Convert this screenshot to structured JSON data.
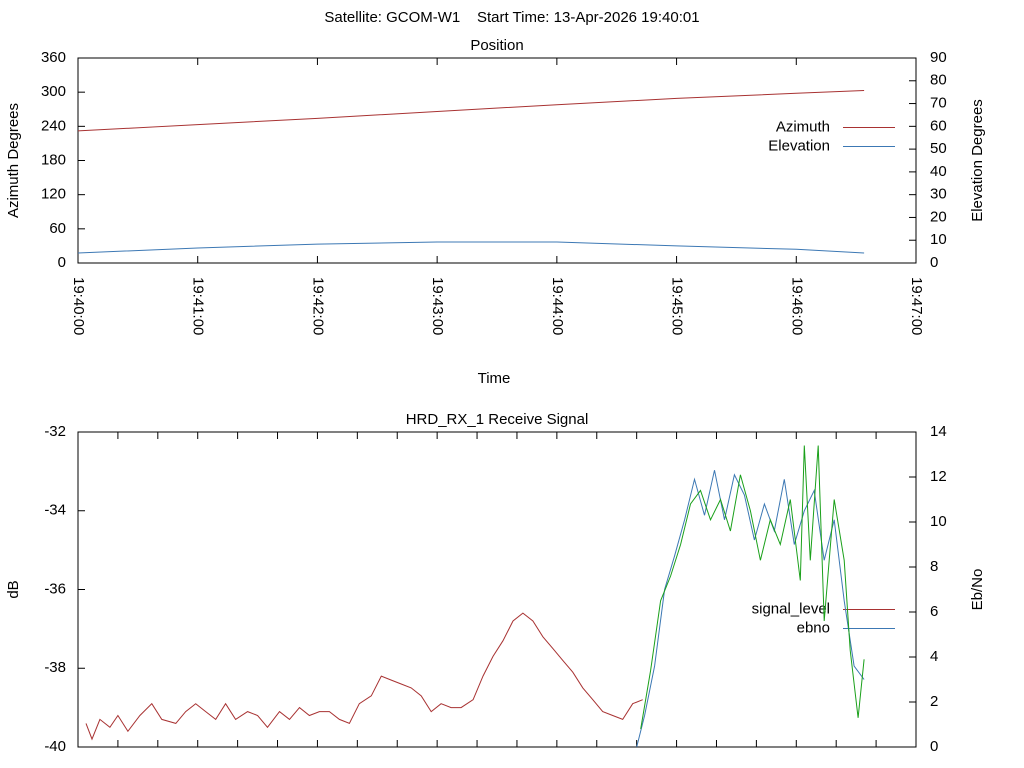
{
  "title": "Satellite: GCOM-W1    Start Time: 13-Apr-2026 19:40:01",
  "chart_data": [
    {
      "type": "line",
      "title": "Position",
      "xlabel": "Time",
      "ylabel": "Azimuth Degrees",
      "y2label": "Elevation Degrees",
      "xlim": [
        "19:40:00",
        "19:47:00"
      ],
      "xticks": [
        "19:40:00",
        "19:41:00",
        "19:42:00",
        "19:43:00",
        "19:44:00",
        "19:45:00",
        "19:46:00",
        "19:47:00"
      ],
      "ylim": [
        0,
        360
      ],
      "yticks": [
        0,
        60,
        120,
        180,
        240,
        300,
        360
      ],
      "y2lim": [
        0,
        90
      ],
      "y2ticks": [
        0,
        10,
        20,
        30,
        40,
        50,
        60,
        70,
        80,
        90
      ],
      "legend": "right",
      "series": [
        {
          "name": "Azimuth",
          "color": "#a83232",
          "x": [
            "19:40:00",
            "19:41:00",
            "19:42:00",
            "19:43:00",
            "19:44:00",
            "19:45:00",
            "19:46:00",
            "19:46:34"
          ],
          "values": [
            232,
            243,
            254,
            266,
            278,
            289,
            298,
            303
          ]
        },
        {
          "name": "Elevation",
          "color": "#3c78b4",
          "axis": "y2",
          "x": [
            "19:40:00",
            "19:41:00",
            "19:42:00",
            "19:43:00",
            "19:44:00",
            "19:45:00",
            "19:46:00",
            "19:46:34"
          ],
          "values": [
            4.4,
            6.6,
            8.3,
            9.2,
            9.2,
            7.5,
            6.0,
            4.4
          ]
        }
      ]
    },
    {
      "type": "line",
      "title": "HRD_RX_1 Receive Signal",
      "ylabel": "dB",
      "y2label": "Eb/No",
      "xlim": [
        "19:40:00",
        "19:47:00"
      ],
      "xticks": [
        "19:40:00",
        "19:40:20",
        "19:40:40",
        "19:41:00",
        "19:41:20",
        "19:41:40",
        "19:42:00",
        "19:42:20",
        "19:42:40",
        "19:43:00",
        "19:43:20",
        "19:43:40",
        "19:44:00",
        "19:44:20",
        "19:44:40",
        "19:45:00",
        "19:45:20",
        "19:45:40",
        "19:46:00",
        "19:46:20",
        "19:46:40",
        "19:47:00"
      ],
      "xtick_labels": false,
      "ylim": [
        -40,
        -32
      ],
      "yticks": [
        -40,
        -38,
        -36,
        -34,
        -32
      ],
      "y2lim": [
        0,
        14
      ],
      "y2ticks": [
        0,
        2,
        4,
        6,
        8,
        10,
        12,
        14
      ],
      "legend": "right",
      "series": [
        {
          "name": "signal_level",
          "color": "#a83232",
          "x": [
            "19:40:04",
            "19:40:07",
            "19:40:11",
            "19:40:16",
            "19:40:20",
            "19:40:25",
            "19:40:31",
            "19:40:37",
            "19:40:42",
            "19:40:49",
            "19:40:54",
            "19:40:59",
            "19:41:04",
            "19:41:09",
            "19:41:14",
            "19:41:19",
            "19:41:25",
            "19:41:30",
            "19:41:35",
            "19:41:41",
            "19:41:46",
            "19:41:51",
            "19:41:56",
            "19:42:01",
            "19:42:06",
            "19:42:11",
            "19:42:16",
            "19:42:21",
            "19:42:27",
            "19:42:32",
            "19:42:37",
            "19:42:42",
            "19:42:47",
            "19:42:52",
            "19:42:57",
            "19:43:02",
            "19:43:07",
            "19:43:12",
            "19:43:18",
            "19:43:23",
            "19:43:28",
            "19:43:33",
            "19:43:38",
            "19:43:43",
            "19:43:48",
            "19:43:53",
            "19:43:58",
            "19:44:03",
            "19:44:08",
            "19:44:13",
            "19:44:18",
            "19:44:23",
            "19:44:28",
            "19:44:33",
            "19:44:38",
            "19:44:43"
          ],
          "values": [
            -39.4,
            -39.8,
            -39.3,
            -39.5,
            -39.2,
            -39.6,
            -39.2,
            -38.9,
            -39.3,
            -39.4,
            -39.1,
            -38.9,
            -39.1,
            -39.3,
            -38.9,
            -39.3,
            -39.1,
            -39.2,
            -39.5,
            -39.1,
            -39.3,
            -39.0,
            -39.2,
            -39.1,
            -39.1,
            -39.3,
            -39.4,
            -38.9,
            -38.7,
            -38.2,
            -38.3,
            -38.4,
            -38.5,
            -38.7,
            -39.1,
            -38.9,
            -39.0,
            -39.0,
            -38.8,
            -38.2,
            -37.7,
            -37.3,
            -36.8,
            -36.6,
            -36.8,
            -37.2,
            -37.5,
            -37.8,
            -38.1,
            -38.5,
            -38.8,
            -39.1,
            -39.2,
            -39.3,
            -38.9,
            -38.8
          ]
        },
        {
          "name": "ebno",
          "color": "#3c78b4",
          "axis": "y2",
          "x": [
            "19:44:40",
            "19:44:44",
            "19:44:49",
            "19:44:54",
            "19:44:59",
            "19:45:04",
            "19:45:09",
            "19:45:14",
            "19:45:19",
            "19:45:24",
            "19:45:29",
            "19:45:34",
            "19:45:39",
            "19:45:44",
            "19:45:49",
            "19:45:54",
            "19:45:59",
            "19:46:04",
            "19:46:09",
            "19:46:14",
            "19:46:19",
            "19:46:24",
            "19:46:29",
            "19:46:34"
          ],
          "values": [
            0,
            1.4,
            3.6,
            7.0,
            8.5,
            10.1,
            11.9,
            10.3,
            12.3,
            10.1,
            12.1,
            11.2,
            9.2,
            10.8,
            9.6,
            11.9,
            9.0,
            10.5,
            11.4,
            8.3,
            10.1,
            6.5,
            3.6,
            3.0
          ]
        },
        {
          "name": null,
          "color": "#1aa01a",
          "axis": "y2",
          "x": [
            "19:44:42",
            "19:44:47",
            "19:44:52",
            "19:44:57",
            "19:45:02",
            "19:45:07",
            "19:45:12",
            "19:45:17",
            "19:45:22",
            "19:45:27",
            "19:45:32",
            "19:45:37",
            "19:45:42",
            "19:45:47",
            "19:45:52",
            "19:45:57",
            "19:46:02",
            "19:46:04",
            "19:46:07",
            "19:46:11",
            "19:46:14",
            "19:46:19",
            "19:46:24",
            "19:46:27",
            "19:46:31",
            "19:46:34"
          ],
          "values": [
            0.8,
            3.4,
            6.5,
            7.6,
            9.0,
            10.8,
            11.4,
            10.1,
            11.0,
            9.6,
            12.1,
            10.5,
            8.3,
            10.1,
            9.0,
            11.0,
            7.4,
            13.4,
            8.3,
            13.4,
            5.6,
            11.0,
            8.3,
            4.3,
            1.3,
            3.9
          ]
        }
      ]
    }
  ]
}
